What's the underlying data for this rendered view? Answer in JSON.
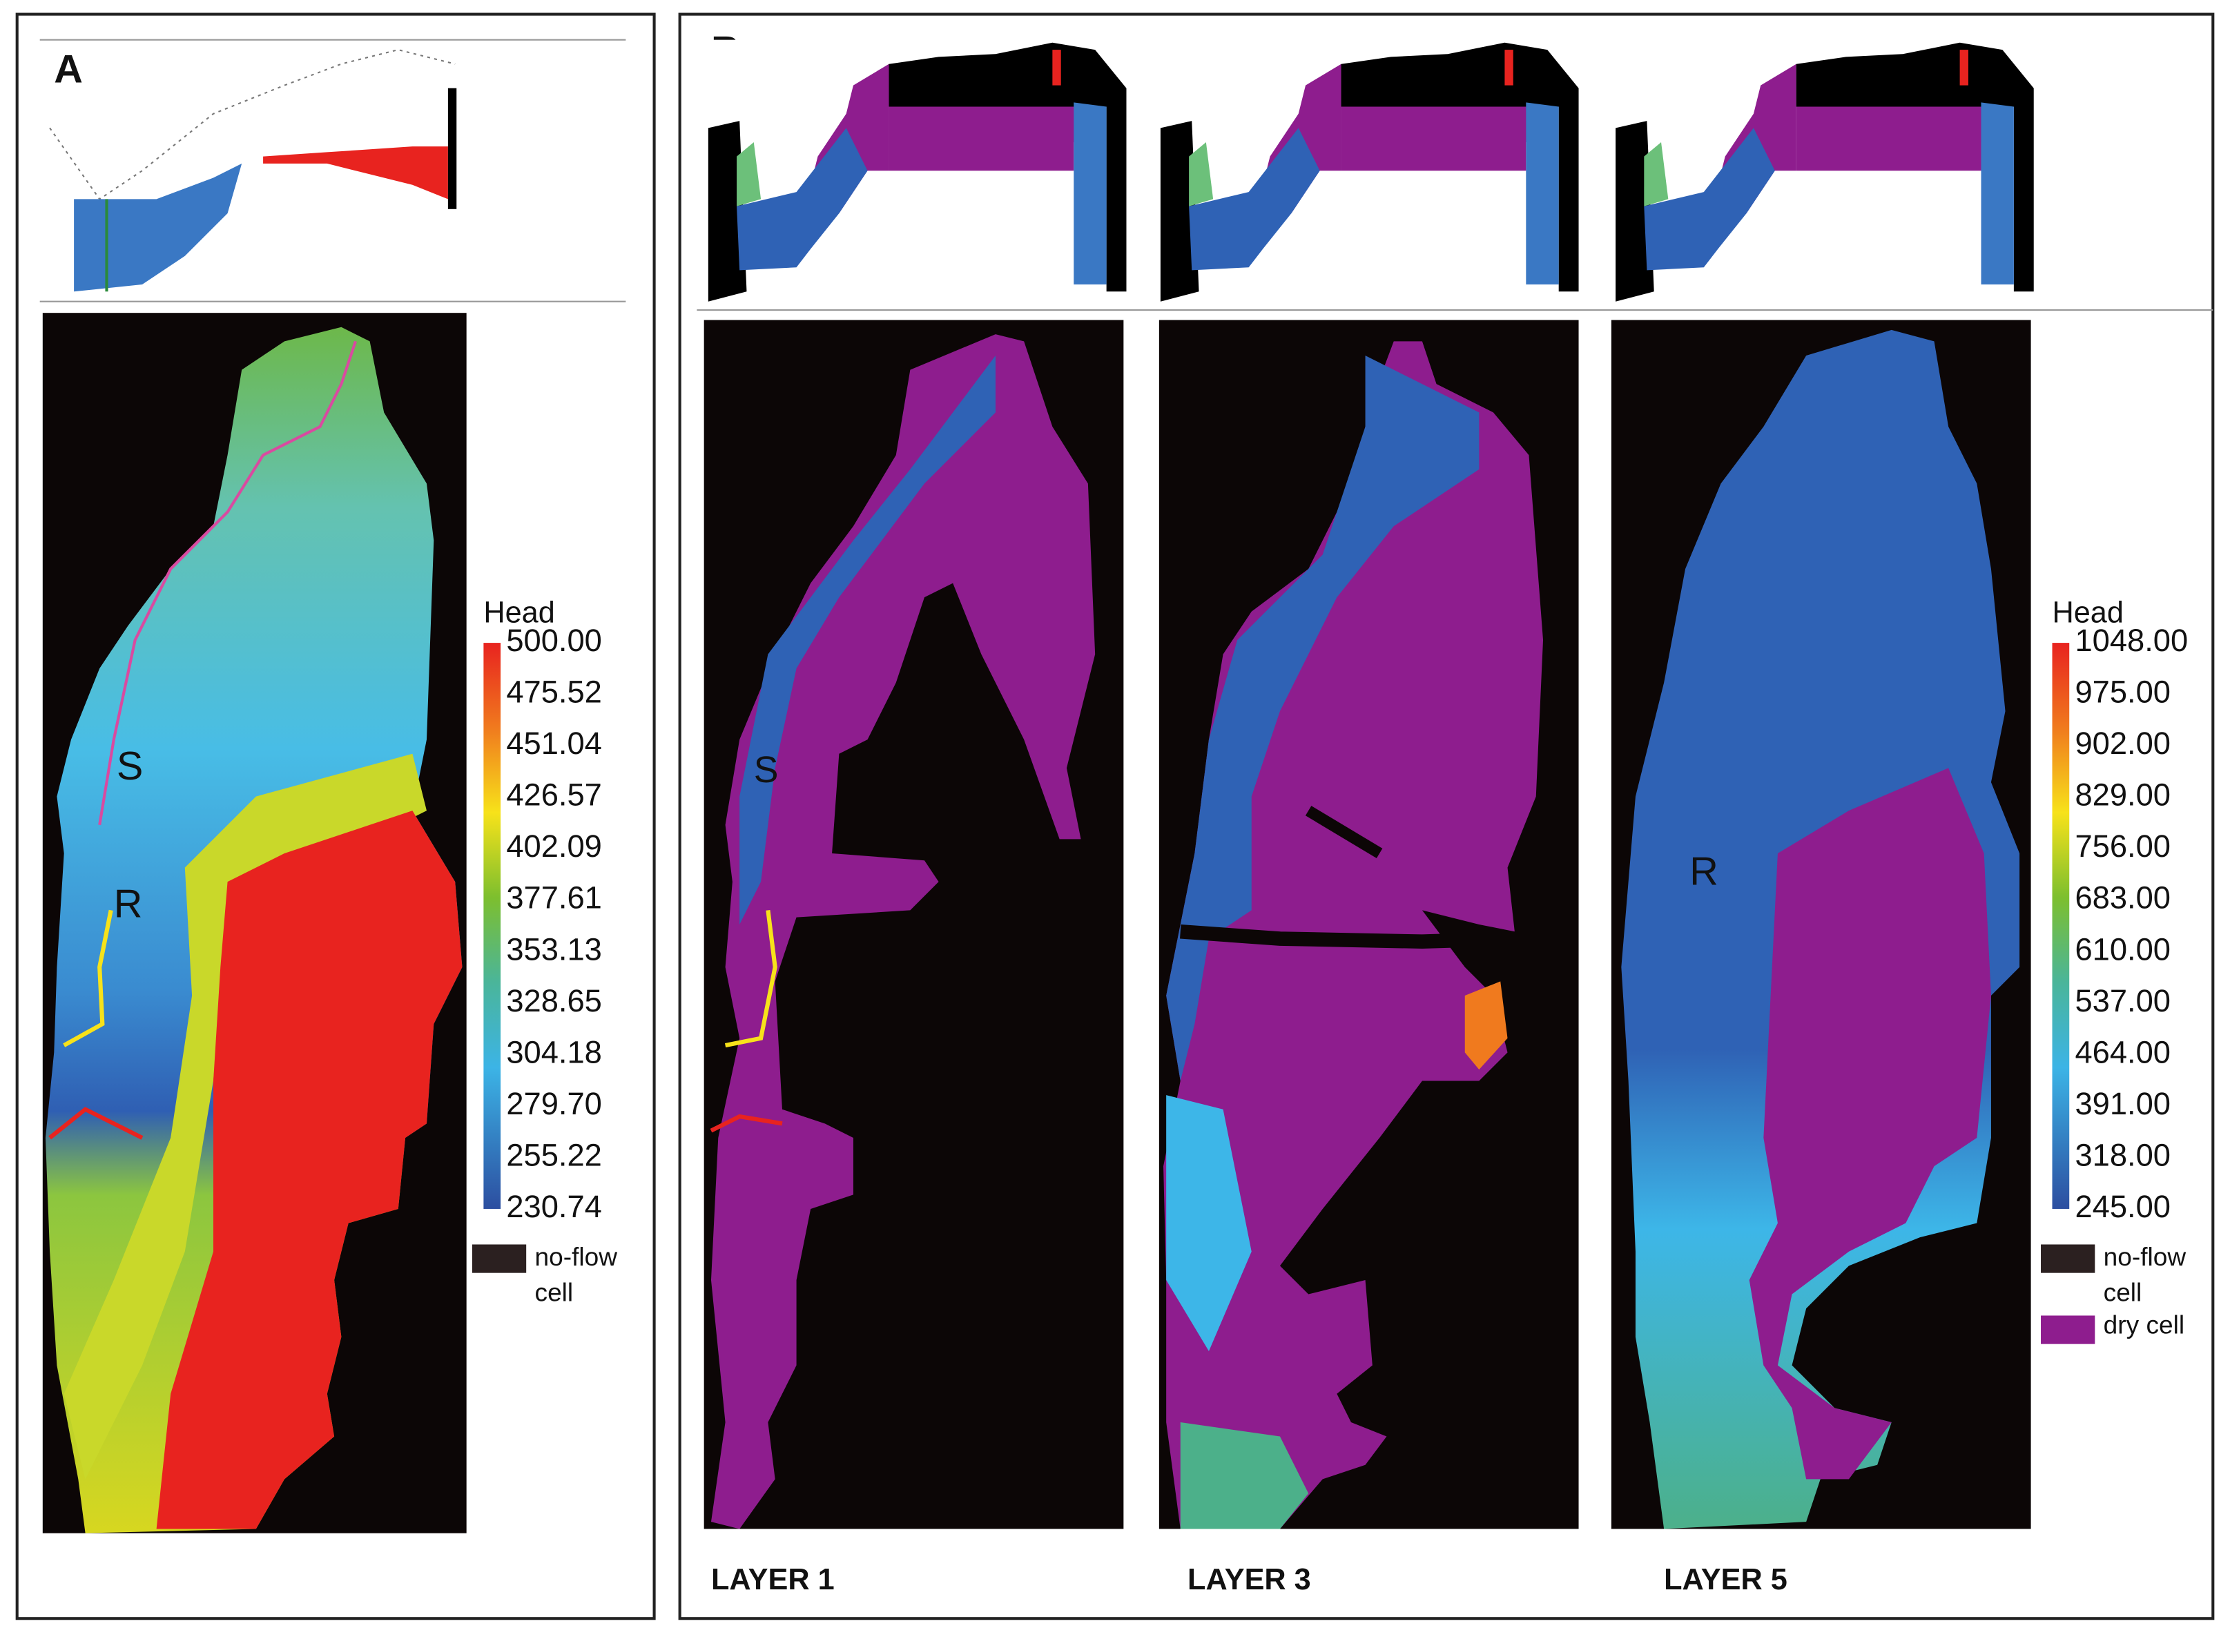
{
  "panel_a": {
    "label": "A",
    "map_labels": [
      "S",
      "R"
    ],
    "legend": {
      "title": "Head",
      "values": [
        "500.00",
        "475.52",
        "451.04",
        "426.57",
        "402.09",
        "377.61",
        "353.13",
        "328.65",
        "304.18",
        "279.70",
        "255.22",
        "230.74"
      ],
      "no_flow": [
        "no-flow",
        "cell"
      ]
    }
  },
  "panel_b": {
    "label": "B",
    "layers": [
      "LAYER 1",
      "LAYER 3",
      "LAYER 5"
    ],
    "map_labels": [
      "S",
      "R"
    ],
    "legend": {
      "title": "Head",
      "values": [
        "1048.00",
        "975.00",
        "902.00",
        "829.00",
        "756.00",
        "683.00",
        "610.00",
        "537.00",
        "464.00",
        "391.00",
        "318.00",
        "245.00"
      ],
      "no_flow": [
        "no-flow",
        "cell"
      ],
      "dry": "dry cell"
    }
  }
}
